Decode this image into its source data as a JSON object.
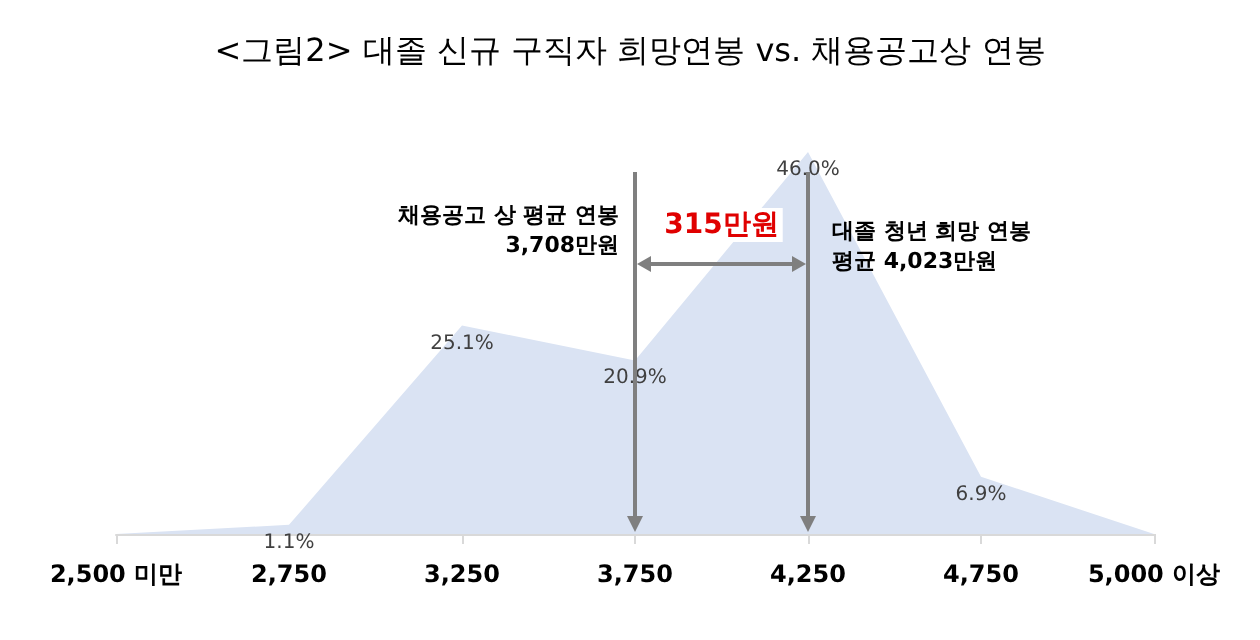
{
  "chart_data": {
    "type": "area",
    "title": "<그림2> 대졸 신규 구직자 희망연봉 vs. 채용공고상 연봉",
    "categories": [
      "2,500 미만",
      "2,750",
      "3,250",
      "3,750",
      "4,250",
      "4,750",
      "5,000 이상"
    ],
    "values": [
      0,
      1.1,
      25.1,
      20.9,
      46.0,
      6.9,
      0
    ],
    "value_labels": [
      null,
      "1.1%",
      "25.1%",
      "20.9%",
      "46.0%",
      "6.9%",
      null
    ],
    "color": "#dae3f3",
    "annotations": [
      "채용공고 상 평균 연봉\n3,708만원",
      "315만원",
      "대졸 청년 희망 연봉\n평균 4,023만원"
    ]
  }
}
